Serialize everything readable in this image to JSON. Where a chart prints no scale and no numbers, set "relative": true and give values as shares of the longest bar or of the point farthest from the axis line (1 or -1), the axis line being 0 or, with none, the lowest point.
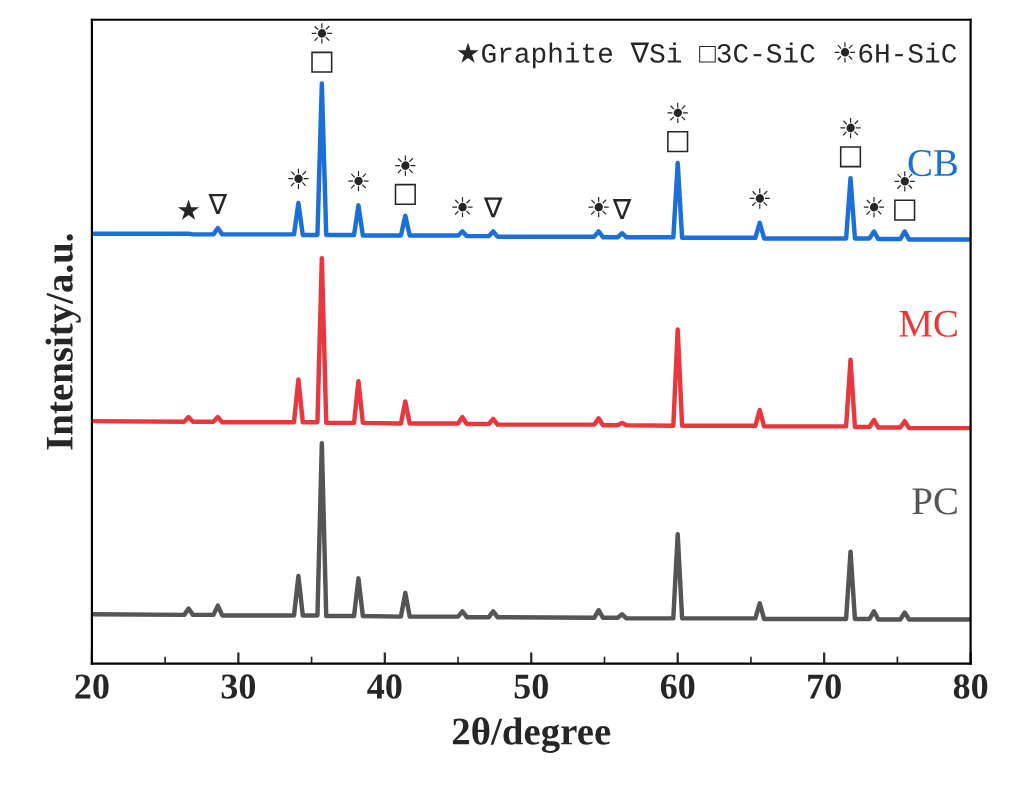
{
  "chart_data": {
    "type": "line",
    "relative": true,
    "xlabel": "2θ/degree",
    "ylabel": "Intensity/a.u.",
    "xlim": [
      20,
      80
    ],
    "xticks": [
      20,
      30,
      40,
      50,
      60,
      70,
      80
    ],
    "grid": false,
    "legend": false,
    "series": [
      {
        "name": "CB",
        "color": "#1a6fd8",
        "x": [
          20,
          26.3,
          26.6,
          26.9,
          28.3,
          28.6,
          28.9,
          33.8,
          34.1,
          34.4,
          35.4,
          35.7,
          36.0,
          37.9,
          38.2,
          38.5,
          41.1,
          41.4,
          41.7,
          45.0,
          45.3,
          45.6,
          47.1,
          47.4,
          47.7,
          54.3,
          54.6,
          54.9,
          55.9,
          56.2,
          56.5,
          59.7,
          60.0,
          60.3,
          65.3,
          65.6,
          65.9,
          71.5,
          71.8,
          72.1,
          73.1,
          73.4,
          73.7,
          75.2,
          75.5,
          75.8,
          80
        ],
        "values": [
          0.741,
          0.741,
          0.741,
          0.74,
          0.74,
          0.751,
          0.74,
          0.74,
          0.794,
          0.739,
          0.739,
          1.0,
          0.739,
          0.739,
          0.79,
          0.738,
          0.738,
          0.772,
          0.738,
          0.738,
          0.745,
          0.737,
          0.737,
          0.745,
          0.736,
          0.736,
          0.745,
          0.735,
          0.735,
          0.742,
          0.735,
          0.735,
          0.863,
          0.734,
          0.734,
          0.76,
          0.733,
          0.733,
          0.837,
          0.733,
          0.733,
          0.745,
          0.732,
          0.732,
          0.745,
          0.731,
          0.731
        ]
      },
      {
        "name": "MC",
        "color": "#e8383d",
        "x": [
          20,
          26.3,
          26.6,
          26.9,
          28.3,
          28.6,
          28.9,
          33.8,
          34.1,
          34.4,
          35.4,
          35.7,
          36.0,
          37.9,
          38.2,
          38.5,
          41.1,
          41.4,
          41.7,
          45.0,
          45.3,
          45.6,
          47.1,
          47.4,
          47.7,
          54.3,
          54.6,
          54.9,
          55.9,
          56.2,
          56.5,
          59.7,
          60.0,
          60.3,
          65.3,
          65.6,
          65.9,
          71.5,
          71.8,
          72.1,
          73.1,
          73.4,
          73.7,
          75.2,
          75.5,
          75.8,
          80
        ],
        "values": [
          0.418,
          0.417,
          0.425,
          0.417,
          0.417,
          0.425,
          0.416,
          0.416,
          0.49,
          0.416,
          0.416,
          0.699,
          0.415,
          0.415,
          0.487,
          0.415,
          0.414,
          0.452,
          0.414,
          0.414,
          0.425,
          0.413,
          0.413,
          0.422,
          0.412,
          0.412,
          0.423,
          0.411,
          0.411,
          0.415,
          0.411,
          0.41,
          0.576,
          0.41,
          0.41,
          0.437,
          0.409,
          0.409,
          0.524,
          0.408,
          0.408,
          0.42,
          0.407,
          0.407,
          0.418,
          0.406,
          0.406
        ]
      },
      {
        "name": "PC",
        "color": "#555555",
        "x": [
          20,
          26.3,
          26.6,
          26.9,
          28.3,
          28.6,
          28.9,
          33.8,
          34.1,
          34.4,
          35.4,
          35.7,
          36.0,
          37.9,
          38.2,
          38.5,
          41.1,
          41.4,
          41.7,
          45.0,
          45.3,
          45.6,
          47.1,
          47.4,
          47.7,
          54.3,
          54.6,
          54.9,
          55.9,
          56.2,
          56.5,
          59.7,
          60.0,
          60.3,
          65.3,
          65.6,
          65.9,
          71.5,
          71.8,
          72.1,
          73.1,
          73.4,
          73.7,
          75.2,
          75.5,
          75.8,
          80
        ],
        "values": [
          0.085,
          0.084,
          0.095,
          0.084,
          0.084,
          0.1,
          0.083,
          0.083,
          0.151,
          0.083,
          0.083,
          0.38,
          0.082,
          0.082,
          0.147,
          0.082,
          0.081,
          0.122,
          0.081,
          0.081,
          0.09,
          0.08,
          0.08,
          0.09,
          0.08,
          0.079,
          0.092,
          0.079,
          0.079,
          0.085,
          0.078,
          0.078,
          0.223,
          0.078,
          0.078,
          0.104,
          0.077,
          0.077,
          0.193,
          0.077,
          0.077,
          0.09,
          0.076,
          0.076,
          0.088,
          0.076,
          0.076
        ]
      }
    ],
    "annotations": [
      "★Graphite ∇Si □3C-SiC ☀6H-SiC",
      {
        "text": "★",
        "x": 26.6,
        "y": 0.741
      },
      {
        "text": "∇",
        "x": 28.6,
        "y": 0.751
      },
      {
        "text": "☀",
        "x": 34.1,
        "y": 0.794
      },
      {
        "text": "☀\n□",
        "x": 35.7,
        "y": 1.0
      },
      {
        "text": "☀",
        "x": 38.2,
        "y": 0.79
      },
      {
        "text": "☀\n□",
        "x": 41.4,
        "y": 0.772
      },
      {
        "text": "☀",
        "x": 45.3,
        "y": 0.745
      },
      {
        "text": "∇",
        "x": 47.4,
        "y": 0.745
      },
      {
        "text": "☀",
        "x": 54.6,
        "y": 0.745
      },
      {
        "text": "∇",
        "x": 56.2,
        "y": 0.742
      },
      {
        "text": "☀\n□",
        "x": 60.0,
        "y": 0.863
      },
      {
        "text": "☀",
        "x": 65.6,
        "y": 0.76
      },
      {
        "text": "☀\n□",
        "x": 71.8,
        "y": 0.837
      },
      {
        "text": "☀",
        "x": 73.4,
        "y": 0.745
      },
      {
        "text": "☀\n□",
        "x": 75.5,
        "y": 0.745
      }
    ]
  }
}
